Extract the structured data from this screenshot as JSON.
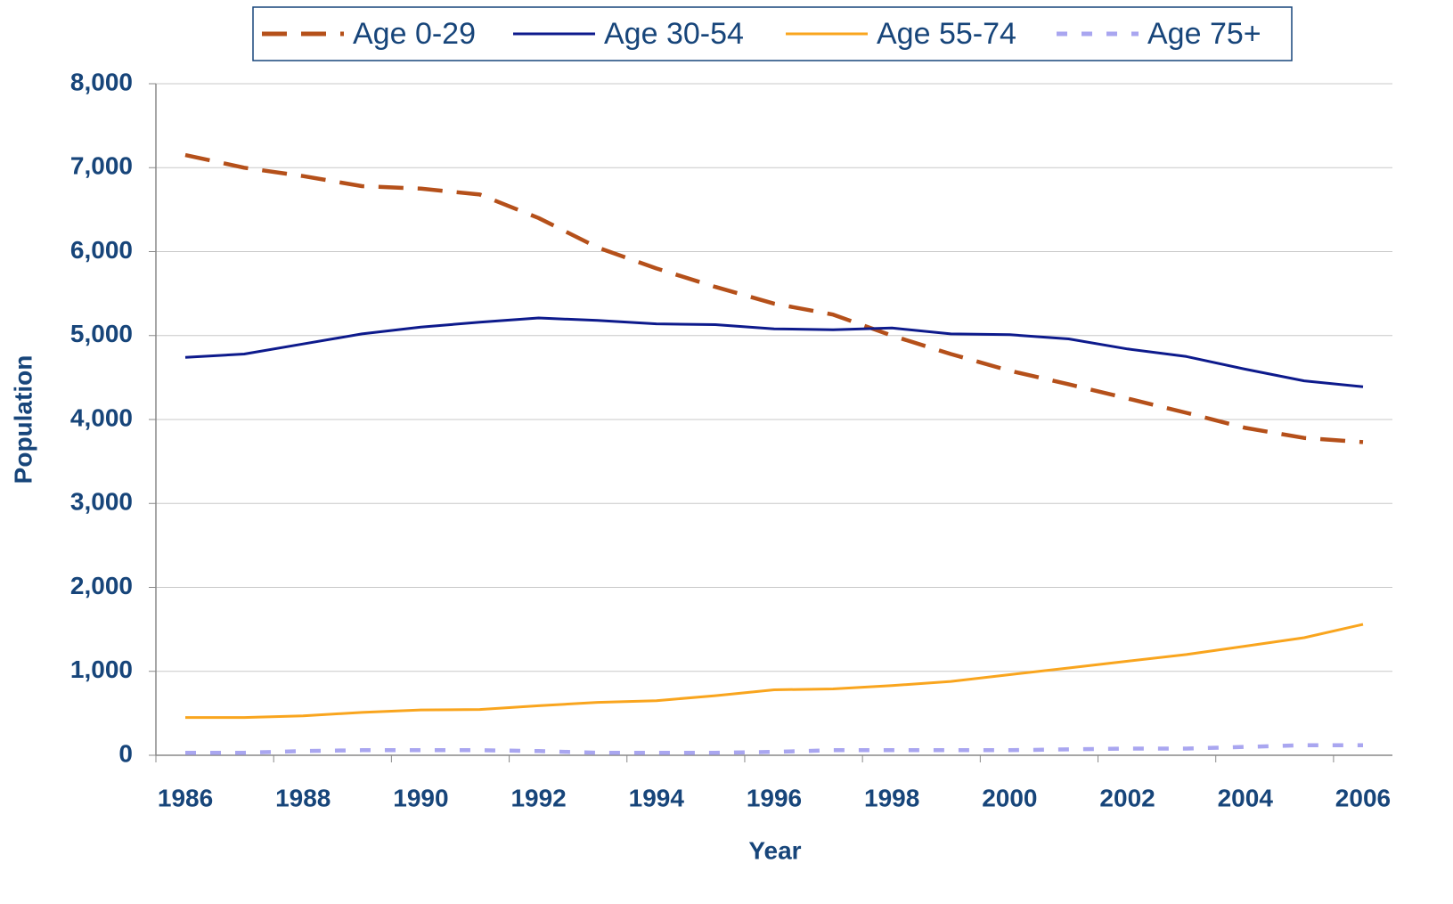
{
  "chart_data": {
    "type": "line",
    "x_label": "Year",
    "y_label": "Population",
    "categories": [
      "1986",
      null,
      "1988",
      null,
      "1990",
      null,
      "1992",
      null,
      "1994",
      null,
      "1996",
      null,
      "1998",
      null,
      "2000",
      null,
      "2002",
      null,
      "2004",
      null,
      "2006"
    ],
    "series": [
      {
        "name": "Age 0-29",
        "color": "#b5501a",
        "dash": "dashed",
        "values": [
          7150,
          7000,
          6900,
          6780,
          6750,
          6680,
          6400,
          6050,
          5800,
          5580,
          5380,
          5250,
          5000,
          4780,
          4580,
          4420,
          4250,
          4080,
          3900,
          3780,
          3730
        ]
      },
      {
        "name": "Age 30-54",
        "color": "#0d1a8c",
        "dash": "solid",
        "values": [
          4740,
          4780,
          4900,
          5020,
          5100,
          5160,
          5210,
          5180,
          5140,
          5130,
          5080,
          5070,
          5090,
          5020,
          5010,
          4960,
          4840,
          4750,
          4600,
          4460,
          4390
        ]
      },
      {
        "name": "Age 55-74",
        "color": "#f9a51e",
        "dash": "solid",
        "values": [
          450,
          450,
          470,
          510,
          540,
          545,
          590,
          630,
          650,
          710,
          780,
          790,
          830,
          880,
          960,
          1040,
          1120,
          1200,
          1300,
          1400,
          1560
        ]
      },
      {
        "name": "Age 75+",
        "color": "#a9a6f0",
        "dash": "dotted",
        "values": [
          30,
          30,
          50,
          60,
          60,
          60,
          50,
          30,
          30,
          30,
          40,
          60,
          60,
          60,
          60,
          70,
          80,
          80,
          100,
          120,
          120
        ]
      }
    ],
    "ylim": [
      0,
      8000
    ],
    "yticks": [
      0,
      {
        "value": 1000,
        "label": "1,000"
      },
      {
        "value": 2000,
        "label": "2,000"
      },
      {
        "value": 3000,
        "label": "3,000"
      },
      {
        "value": 4000,
        "label": "4,000"
      },
      {
        "value": 5000,
        "label": "5,000"
      },
      {
        "value": 6000,
        "label": "6,000"
      },
      {
        "value": 7000,
        "label": "7,000"
      },
      {
        "value": 8000,
        "label": "8,000"
      }
    ],
    "grid": true,
    "legend": "top"
  }
}
